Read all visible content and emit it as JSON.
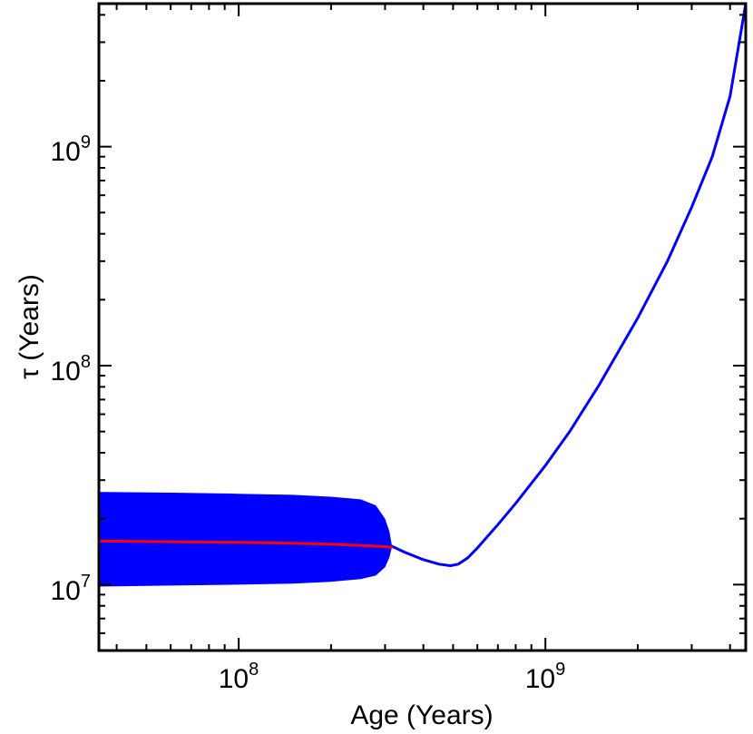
{
  "chart_data": {
    "type": "line",
    "xlabel": "Age (Years)",
    "ylabel": "τ  (Years)",
    "x_scale": "log",
    "y_scale": "log",
    "xlim": [
      35000000,
      4500000000
    ],
    "ylim": [
      5000000,
      4500000000
    ],
    "x_ticks": [
      {
        "base": "10",
        "exp": "8",
        "value": 100000000
      },
      {
        "base": "10",
        "exp": "9",
        "value": 1000000000
      }
    ],
    "y_ticks": [
      {
        "base": "10",
        "exp": "7",
        "value": 10000000
      },
      {
        "base": "10",
        "exp": "8",
        "value": 100000000
      },
      {
        "base": "10",
        "exp": "9",
        "value": 1000000000
      }
    ],
    "grid": false,
    "legend": false,
    "band": {
      "color": "#0000ff",
      "x": [
        35000000,
        60000000,
        100000000,
        150000000,
        200000000,
        250000000,
        280000000,
        300000000,
        310000000,
        315000000
      ],
      "upper": [
        26500000,
        26300000,
        26000000,
        25700000,
        25200000,
        24500000,
        23000000,
        20000000,
        17500000,
        15400000
      ],
      "lower": [
        9800000,
        9900000,
        10000000,
        10100000,
        10300000,
        10600000,
        11000000,
        12000000,
        13300000,
        14600000
      ]
    },
    "series": [
      {
        "color": "#0000ff",
        "x": [
          315000000,
          350000000,
          400000000,
          450000000,
          490000000,
          520000000,
          560000000,
          600000000,
          700000000,
          800000000,
          1000000000,
          1200000000,
          1500000000,
          2000000000,
          2500000000,
          3000000000,
          3500000000,
          4000000000,
          4500000000
        ],
        "y": [
          15000000,
          14000000,
          13000000,
          12400000,
          12200000,
          12400000,
          13300000,
          14700000,
          18800000,
          23500000,
          35000000,
          50000000,
          82000000,
          165000000,
          300000000,
          530000000,
          900000000,
          1700000000,
          4500000000
        ]
      },
      {
        "color": "#ff0000",
        "x": [
          35000000,
          60000000,
          100000000,
          150000000,
          200000000,
          250000000,
          300000000,
          315000000
        ],
        "y": [
          15800000,
          15700000,
          15600000,
          15450000,
          15300000,
          15100000,
          14900000,
          14800000
        ]
      }
    ]
  }
}
